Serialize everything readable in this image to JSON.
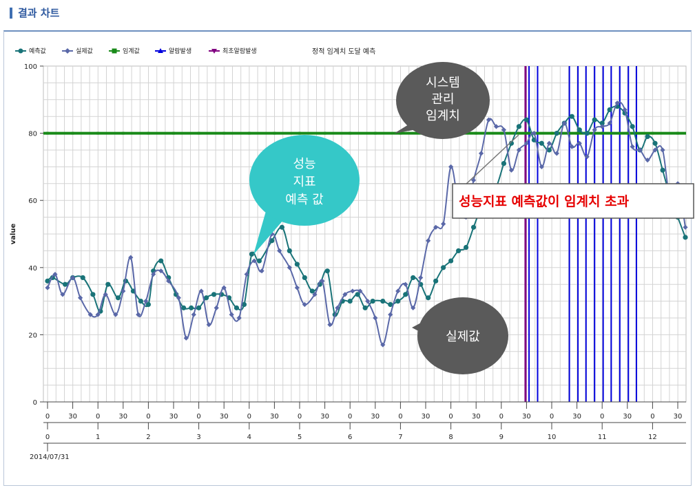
{
  "header": {
    "title": "결과 차트"
  },
  "colors": {
    "predicted": "#197378",
    "actual": "#5a68a8",
    "threshold": "#188a18",
    "alarm": "#0000dd",
    "first_alarm": "#800080",
    "grid": "#d3d3d3"
  },
  "chart_data": {
    "type": "line",
    "title": "정적 임계치 도달 예측",
    "ylabel": "value",
    "ylim": [
      0,
      100
    ],
    "yticks": [
      "0",
      "20",
      "40",
      "60",
      "80",
      "100"
    ],
    "date_label": "2014/07/31",
    "x_tick_labels": [
      "0",
      "30",
      "0",
      "30",
      "0",
      "30",
      "0",
      "30",
      "0",
      "30",
      "0",
      "30",
      "0",
      "30",
      "0",
      "30",
      "0",
      "30",
      "0",
      "30",
      "0",
      "30",
      "0",
      "30",
      "0",
      "30"
    ],
    "hour_labels": [
      "0",
      "1",
      "2",
      "3",
      "4",
      "5",
      "6",
      "7",
      "8",
      "9",
      "10",
      "11",
      "12"
    ],
    "legend": [
      {
        "name": "예측값",
        "color": "#197378",
        "marker": "circle"
      },
      {
        "name": "실제값",
        "color": "#5a68a8",
        "marker": "diamond"
      },
      {
        "name": "임계값",
        "color": "#188a18",
        "marker": "square"
      },
      {
        "name": "알람발생",
        "color": "#0000dd",
        "marker": "triangle-up"
      },
      {
        "name": "최초알람발생",
        "color": "#800080",
        "marker": "triangle-down"
      }
    ],
    "threshold": 80,
    "series": [
      {
        "name": "예측값",
        "values": [
          36,
          37,
          35,
          37,
          37,
          32,
          27,
          35,
          31,
          36,
          33,
          30,
          29,
          39,
          42,
          37,
          32,
          28,
          28,
          28,
          31,
          32,
          32,
          31,
          28,
          29,
          44,
          42,
          48,
          52,
          45,
          41,
          37,
          33,
          35,
          39,
          26,
          30,
          30,
          32,
          28,
          30,
          30,
          29,
          30,
          32,
          37,
          35,
          31,
          36,
          40,
          42,
          45,
          46,
          52,
          58,
          62,
          64,
          71,
          77,
          82,
          84,
          78,
          77,
          75,
          80,
          83,
          85,
          81,
          80,
          84,
          83,
          87,
          88,
          86,
          82,
          75,
          79,
          77,
          69,
          61,
          55,
          49
        ],
        "x_hours": [
          0.0,
          0.1,
          0.35,
          0.5,
          0.7,
          0.9,
          1.05,
          1.2,
          1.4,
          1.55,
          1.7,
          1.85,
          2.0,
          2.1,
          2.25,
          2.4,
          2.55,
          2.7,
          2.85,
          3.0,
          3.15,
          3.3,
          3.45,
          3.6,
          3.75,
          3.9,
          4.05,
          4.2,
          4.45,
          4.65,
          4.8,
          4.95,
          5.1,
          5.25,
          5.4,
          5.55,
          5.7,
          5.85,
          6.0,
          6.15,
          6.3,
          6.45,
          6.65,
          6.8,
          6.95,
          7.1,
          7.25,
          7.4,
          7.55,
          7.7,
          7.85,
          8.0,
          8.15,
          8.3,
          8.45,
          8.6,
          8.75,
          8.9,
          9.05,
          9.2,
          9.35,
          9.5,
          9.65,
          9.8,
          9.95,
          10.1,
          10.25,
          10.4,
          10.55,
          10.7,
          10.85,
          11.0,
          11.15,
          11.3,
          11.45,
          11.6,
          11.75,
          11.9,
          12.05,
          12.2,
          12.35,
          12.5,
          12.65
        ]
      },
      {
        "name": "실제값",
        "values": [
          34,
          38,
          32,
          37,
          31,
          26,
          26,
          32,
          26,
          33,
          43,
          26,
          30,
          38,
          39,
          36,
          31,
          19,
          26,
          33,
          23,
          28,
          34,
          26,
          25,
          38,
          42,
          39,
          50,
          45,
          40,
          34,
          29,
          32,
          36,
          23,
          28,
          32,
          33,
          33,
          30,
          25,
          17,
          26,
          33,
          35,
          28,
          37,
          48,
          52,
          53,
          70,
          59,
          55,
          66,
          74,
          84,
          82,
          81,
          69,
          75,
          77,
          80,
          70,
          77,
          74,
          83,
          76,
          77,
          73,
          81,
          82,
          83,
          89,
          87,
          76,
          75,
          72,
          75,
          75,
          60,
          65,
          52
        ],
        "x_hours": [
          0.0,
          0.15,
          0.3,
          0.5,
          0.65,
          0.85,
          1.0,
          1.15,
          1.35,
          1.5,
          1.65,
          1.8,
          1.95,
          2.1,
          2.25,
          2.4,
          2.6,
          2.75,
          2.9,
          3.05,
          3.2,
          3.35,
          3.5,
          3.65,
          3.8,
          3.95,
          4.1,
          4.25,
          4.45,
          4.6,
          4.8,
          4.95,
          5.1,
          5.3,
          5.45,
          5.6,
          5.75,
          5.9,
          6.05,
          6.2,
          6.35,
          6.5,
          6.65,
          6.8,
          6.95,
          7.1,
          7.25,
          7.4,
          7.55,
          7.7,
          7.85,
          8.0,
          8.15,
          8.3,
          8.45,
          8.6,
          8.75,
          8.9,
          9.05,
          9.2,
          9.35,
          9.5,
          9.65,
          9.8,
          9.95,
          10.1,
          10.25,
          10.4,
          10.55,
          10.7,
          10.85,
          11.0,
          11.15,
          11.3,
          11.45,
          11.6,
          11.75,
          11.9,
          12.05,
          12.2,
          12.35,
          12.5,
          12.65
        ]
      }
    ],
    "alarm_hours": [
      9.55,
      9.72,
      10.35,
      10.52,
      10.68,
      10.85,
      11.02,
      11.18,
      11.35,
      11.52,
      11.68
    ],
    "first_alarm_hour": 9.48,
    "annotations": {
      "bubble_system": [
        "시스템",
        "관리",
        "임계치"
      ],
      "bubble_predict": [
        "성능",
        "지표",
        "예측 값"
      ],
      "bubble_actual": [
        "실제값"
      ],
      "callout_box": "성능지표 예측값이 임계치 초과"
    }
  }
}
